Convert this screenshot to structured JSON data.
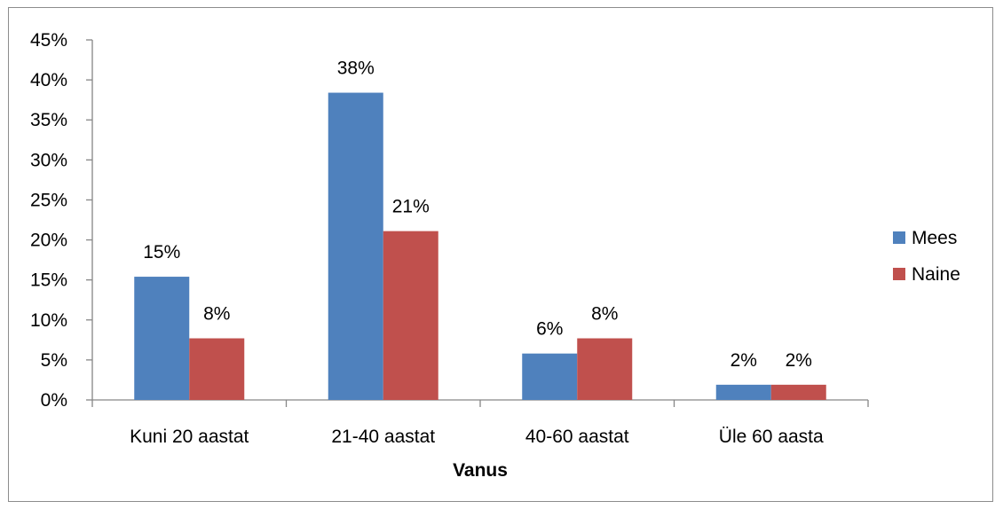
{
  "chart_data": {
    "type": "bar",
    "title": "",
    "xlabel": "Vanus",
    "ylabel": "",
    "categories": [
      "Kuni 20 aastat",
      "21-40 aastat",
      "40-60 aastat",
      "Üle 60 aasta"
    ],
    "series": [
      {
        "name": "Mees",
        "color": "#4f81bd",
        "values": [
          15.4,
          38.4,
          5.8,
          1.9
        ],
        "labels": [
          "15%",
          "38%",
          "6%",
          "2%"
        ]
      },
      {
        "name": "Naine",
        "color": "#c0504d",
        "values": [
          7.7,
          21.1,
          7.7,
          1.9
        ],
        "labels": [
          "8%",
          "21%",
          "8%",
          "2%"
        ]
      }
    ],
    "ylim": [
      0,
      45
    ],
    "yticks": [
      0,
      5,
      10,
      15,
      20,
      25,
      30,
      35,
      40,
      45
    ],
    "ytick_labels": [
      "0%",
      "5%",
      "10%",
      "15%",
      "20%",
      "25%",
      "30%",
      "35%",
      "40%",
      "45%"
    ],
    "grid": false,
    "legend_position": "right"
  }
}
